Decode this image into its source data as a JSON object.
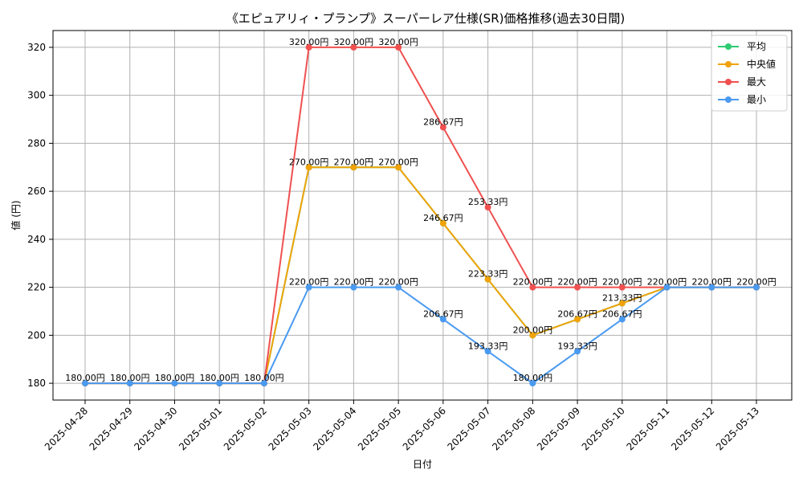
{
  "chart_data": {
    "type": "line",
    "title": "《エピュアリィ・プランプ》スーパーレア仕様(SR)価格推移(過去30日間)",
    "xlabel": "日付",
    "ylabel": "値 (円)",
    "ylim": [
      173,
      327
    ],
    "yticks": [
      180,
      200,
      220,
      240,
      260,
      280,
      300,
      320
    ],
    "grid": true,
    "legend_position": "top-right",
    "categories": [
      "2025-04-28",
      "2025-04-29",
      "2025-04-30",
      "2025-05-01",
      "2025-05-02",
      "2025-05-03",
      "2025-05-04",
      "2025-05-05",
      "2025-05-06",
      "2025-05-07",
      "2025-05-08",
      "2025-05-09",
      "2025-05-10",
      "2025-05-11",
      "2025-05-12",
      "2025-05-13"
    ],
    "series": [
      {
        "name": "平均",
        "color": "#2ecc71",
        "values": [
          180,
          180,
          180,
          180,
          180,
          270,
          270,
          270,
          246.67,
          223.33,
          200,
          206.67,
          213.33,
          220,
          220,
          220
        ]
      },
      {
        "name": "中央値",
        "color": "#f0a30a",
        "values": [
          180,
          180,
          180,
          180,
          180,
          270,
          270,
          270,
          246.67,
          223.33,
          200,
          206.67,
          213.33,
          220,
          220,
          220
        ]
      },
      {
        "name": "最大",
        "color": "#f05050",
        "values": [
          180,
          180,
          180,
          180,
          180,
          320,
          320,
          320,
          286.67,
          253.33,
          220,
          220,
          220,
          220,
          220,
          220
        ]
      },
      {
        "name": "最小",
        "color": "#4a9af0",
        "values": [
          180,
          180,
          180,
          180,
          180,
          220,
          220,
          220,
          206.67,
          193.33,
          180,
          193.33,
          206.67,
          220,
          220,
          220
        ]
      }
    ],
    "data_labels": [
      {
        "text": "180.00円",
        "x": 0,
        "y": 180
      },
      {
        "text": "180.00円",
        "x": 1,
        "y": 180
      },
      {
        "text": "180.00円",
        "x": 2,
        "y": 180
      },
      {
        "text": "180.00円",
        "x": 3,
        "y": 180
      },
      {
        "text": "180.00円",
        "x": 4,
        "y": 180
      },
      {
        "text": "320.00円",
        "x": 5,
        "y": 320
      },
      {
        "text": "320.00円",
        "x": 6,
        "y": 320
      },
      {
        "text": "320.00円",
        "x": 7,
        "y": 320
      },
      {
        "text": "270.00円",
        "x": 5,
        "y": 270
      },
      {
        "text": "270.00円",
        "x": 6,
        "y": 270
      },
      {
        "text": "270.00円",
        "x": 7,
        "y": 270
      },
      {
        "text": "220.00円",
        "x": 5,
        "y": 220
      },
      {
        "text": "220.00円",
        "x": 6,
        "y": 220
      },
      {
        "text": "220.00円",
        "x": 7,
        "y": 220
      },
      {
        "text": "286.67円",
        "x": 8,
        "y": 286.67
      },
      {
        "text": "246.67円",
        "x": 8,
        "y": 246.67
      },
      {
        "text": "206.67円",
        "x": 8,
        "y": 206.67
      },
      {
        "text": "253.33円",
        "x": 9,
        "y": 253.33
      },
      {
        "text": "223.33円",
        "x": 9,
        "y": 223.33
      },
      {
        "text": "193.33円",
        "x": 9,
        "y": 193.33
      },
      {
        "text": "220.00円",
        "x": 10,
        "y": 220
      },
      {
        "text": "200.00円",
        "x": 10,
        "y": 200
      },
      {
        "text": "180.00円",
        "x": 10,
        "y": 180
      },
      {
        "text": "220.00円",
        "x": 11,
        "y": 220
      },
      {
        "text": "206.67円",
        "x": 11,
        "y": 206.67
      },
      {
        "text": "193.33円",
        "x": 11,
        "y": 193.33
      },
      {
        "text": "220.00円",
        "x": 12,
        "y": 220
      },
      {
        "text": "213.33円",
        "x": 12,
        "y": 213.33
      },
      {
        "text": "206.67円",
        "x": 12,
        "y": 206.67
      },
      {
        "text": "220.00円",
        "x": 13,
        "y": 220
      },
      {
        "text": "220.00円",
        "x": 14,
        "y": 220
      },
      {
        "text": "220.00円",
        "x": 15,
        "y": 220
      }
    ]
  }
}
